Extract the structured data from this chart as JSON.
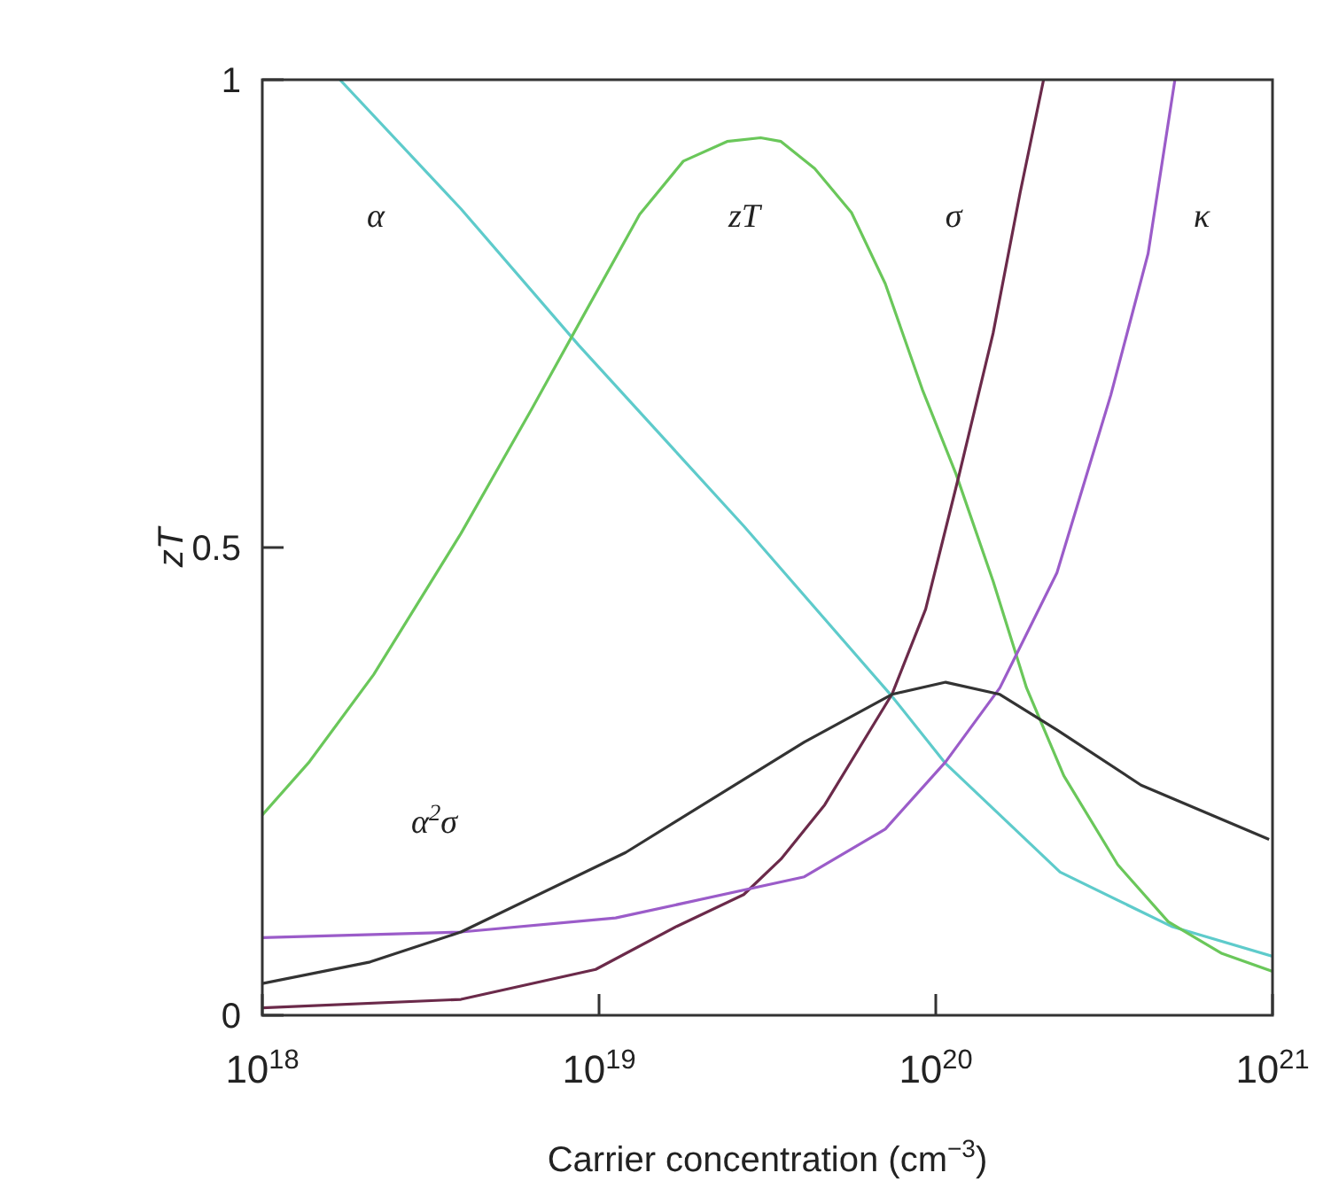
{
  "chart_data": {
    "type": "line",
    "xlabel": "Carrier concentration (cm$^{−3}$)",
    "ylabel": "zT",
    "log": "x",
    "xlim": [
      1e+18,
      1e+21
    ],
    "ylim": [
      0,
      1
    ],
    "xticks": [
      {
        "value": 1e+18,
        "label": "10$^{18}$"
      },
      {
        "value": 1e+19,
        "label": "10$^{19}$"
      },
      {
        "value": 1e+20,
        "label": "10$^{20}$"
      },
      {
        "value": 1e+21,
        "label": "10$^{21}$"
      }
    ],
    "yticks": [
      0,
      0.5,
      1
    ],
    "grid": false,
    "marker": "none",
    "line_style": "solid",
    "series": [
      {
        "name": "α",
        "color": "#5ecbcb",
        "x": [
          1.7e+18,
          3.89e+18,
          8.71e+18,
          2.69e+19,
          7.41e+19,
          1.07e+20,
          2.34e+20,
          5.01e+20,
          1e+21
        ],
        "values": [
          1.0,
          0.862,
          0.716,
          0.523,
          0.341,
          0.269,
          0.153,
          0.095,
          0.063
        ]
      },
      {
        "name": "zT",
        "color": "#6ac75a",
        "x": [
          1e+18,
          1.38e+18,
          2.14e+18,
          3.89e+18,
          6.31e+18,
          9.12e+18,
          1.32e+19,
          1.78e+19,
          2.4e+19,
          3.02e+19,
          3.47e+19,
          4.37e+19,
          5.62e+19,
          7.08e+19,
          9.12e+19,
          1.15e+20,
          1.48e+20,
          1.86e+20,
          2.4e+20,
          3.47e+20,
          4.9e+20,
          7.08e+20,
          1e+21
        ],
        "values": [
          0.214,
          0.271,
          0.364,
          0.515,
          0.648,
          0.752,
          0.856,
          0.913,
          0.934,
          0.938,
          0.934,
          0.905,
          0.858,
          0.782,
          0.669,
          0.578,
          0.464,
          0.35,
          0.256,
          0.161,
          0.1,
          0.066,
          0.047
        ]
      },
      {
        "name": "σ",
        "color": "#6b2a4a",
        "x": [
          1e+18,
          3.89e+18,
          9.77e+18,
          1.7e+19,
          2.69e+19,
          3.47e+19,
          4.68e+19,
          7.41e+19,
          9.33e+19,
          1.17e+20,
          1.48e+20,
          1.78e+20,
          2.09e+20
        ],
        "values": [
          0.008,
          0.017,
          0.049,
          0.095,
          0.129,
          0.167,
          0.225,
          0.343,
          0.434,
          0.576,
          0.729,
          0.879,
          1.0
        ]
      },
      {
        "name": "κ",
        "color": "#9b5cc9",
        "x": [
          1e+18,
          3.89e+18,
          1.12e+19,
          4.07e+19,
          7.08e+19,
          1.07e+20,
          1.55e+20,
          2.29e+20,
          3.31e+20,
          4.27e+20,
          5.13e+20
        ],
        "values": [
          0.083,
          0.089,
          0.104,
          0.148,
          0.199,
          0.271,
          0.35,
          0.473,
          0.663,
          0.814,
          1.0
        ]
      },
      {
        "name": "α$^{2}$σ",
        "color": "#333333",
        "x": [
          1e+18,
          2.09e+18,
          3.89e+18,
          1.2e+19,
          4.07e+19,
          7.41e+19,
          1.07e+20,
          1.55e+20,
          2.29e+20,
          4.07e+20,
          9.77e+20
        ],
        "values": [
          0.034,
          0.057,
          0.089,
          0.174,
          0.292,
          0.343,
          0.356,
          0.343,
          0.305,
          0.246,
          0.188
        ]
      }
    ]
  }
}
